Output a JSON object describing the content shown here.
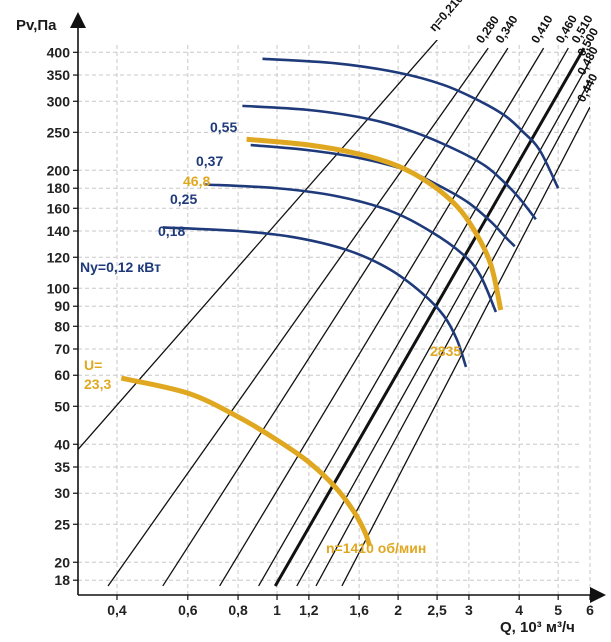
{
  "chart_data": {
    "type": "line",
    "title": "",
    "ylabel": "Pv,Па",
    "xlabel": "Q, 10³ м³/ч",
    "xscale": "log",
    "yscale": "log",
    "xlim": [
      0.32,
      6.0
    ],
    "ylim": [
      16.5,
      430
    ],
    "grid": true,
    "x_ticks": [
      0.4,
      0.6,
      0.8,
      1,
      1.2,
      1.6,
      2,
      2.5,
      3,
      4,
      5,
      6
    ],
    "x_tick_labels": [
      "0,4",
      "0,6",
      "0,8",
      "1",
      "1,2",
      "1,6",
      "2",
      "2,5",
      "3",
      "4",
      "5",
      "6"
    ],
    "y_ticks": [
      18,
      20,
      25,
      30,
      35,
      40,
      50,
      60,
      70,
      80,
      90,
      100,
      120,
      140,
      160,
      180,
      200,
      250,
      300,
      350,
      400
    ],
    "y_tick_labels": [
      "18",
      "20",
      "25",
      "30",
      "35",
      "40",
      "50",
      "60",
      "70",
      "80",
      "90",
      "100",
      "120",
      "140",
      "160",
      "180",
      "200",
      "250",
      "300",
      "350",
      "400"
    ],
    "efficiency_lines": [
      {
        "label": "η=0,210",
        "x": [
          0.318,
          2.55
        ],
        "y": [
          38.5,
          440
        ]
      },
      {
        "label": "0,280",
        "x": [
          0.38,
          3.35
        ],
        "y": [
          17.4,
          410
        ]
      },
      {
        "label": "0,340",
        "x": [
          0.52,
          3.75
        ],
        "y": [
          17.4,
          410
        ]
      },
      {
        "label": "0,410",
        "x": [
          0.72,
          4.6
        ],
        "y": [
          17.4,
          410
        ]
      },
      {
        "label": "0,460",
        "x": [
          0.9,
          5.3
        ],
        "y": [
          17.4,
          410
        ]
      },
      {
        "label": "0,510",
        "x": [
          0.99,
          5.8
        ],
        "y": [
          17.4,
          410
        ],
        "bold": true
      },
      {
        "label": "0,500",
        "x": [
          1.12,
          6.0
        ],
        "y": [
          17.4,
          380
        ]
      },
      {
        "label": "0,480",
        "x": [
          1.25,
          6.0
        ],
        "y": [
          17.4,
          340
        ]
      },
      {
        "label": "0,440",
        "x": [
          1.45,
          6.0
        ],
        "y": [
          17.4,
          290
        ]
      }
    ],
    "series": [
      {
        "name": "0,55",
        "color": "#1f3a7a",
        "x": [
          0.92,
          1.4,
          2.0,
          2.6,
          3.2,
          3.7,
          4.1,
          4.5,
          5.0
        ],
        "y": [
          385,
          375,
          355,
          330,
          300,
          275,
          250,
          225,
          180
        ]
      },
      {
        "name": "0,37",
        "color": "#1f3a7a",
        "x": [
          0.82,
          1.2,
          1.7,
          2.2,
          2.8,
          3.3,
          3.7,
          4.0,
          4.4
        ],
        "y": [
          292,
          285,
          270,
          250,
          225,
          205,
          185,
          170,
          150
        ]
      },
      {
        "name": "0,25",
        "color": "#1f3a7a",
        "x": [
          0.86,
          1.2,
          1.6,
          2.1,
          2.6,
          3.0,
          3.4,
          3.7,
          3.9
        ],
        "y": [
          232,
          225,
          215,
          200,
          180,
          165,
          148,
          135,
          128
        ]
      },
      {
        "name": "0,18",
        "color": "#1f3a7a",
        "x": [
          0.66,
          1.0,
          1.4,
          1.9,
          2.4,
          2.9,
          3.2,
          3.5
        ],
        "y": [
          184,
          180,
          172,
          158,
          140,
          122,
          108,
          87
        ]
      },
      {
        "name": "Ny=0,12 кВт",
        "color": "#1f3a7a",
        "x": [
          0.52,
          0.8,
          1.1,
          1.5,
          1.9,
          2.3,
          2.6,
          2.8,
          2.95
        ],
        "y": [
          143,
          140,
          135,
          125,
          112,
          97,
          85,
          74,
          63
        ]
      },
      {
        "name": "U=23,3",
        "color": "#e0a820",
        "x": [
          0.41,
          0.6,
          0.8,
          1.0,
          1.2,
          1.4,
          1.55,
          1.65,
          1.7
        ],
        "y": [
          59,
          54,
          47,
          41,
          36,
          31,
          27,
          24,
          22
        ]
      },
      {
        "name": "46,8",
        "color": "#e0a820",
        "x": [
          0.84,
          1.2,
          1.6,
          2.0,
          2.4,
          2.8,
          3.1,
          3.4,
          3.6
        ],
        "y": [
          240,
          232,
          220,
          205,
          185,
          162,
          140,
          115,
          88
        ]
      }
    ],
    "annotations": {
      "label_55": "0,55",
      "label_37": "0,37",
      "label_25": "0,25",
      "label_18": "0,18",
      "label_12": "Ny=0,12 кВт",
      "label_468": "46,8",
      "label_u": "U=",
      "label_u_val": "23,3",
      "label_2835": "2835",
      "label_n": "n=1410 об/мин"
    }
  },
  "colors": {
    "navy": "#1f3a7a",
    "gold": "#e0a820",
    "grid": "#c8c8c8",
    "axis": "#111111"
  }
}
